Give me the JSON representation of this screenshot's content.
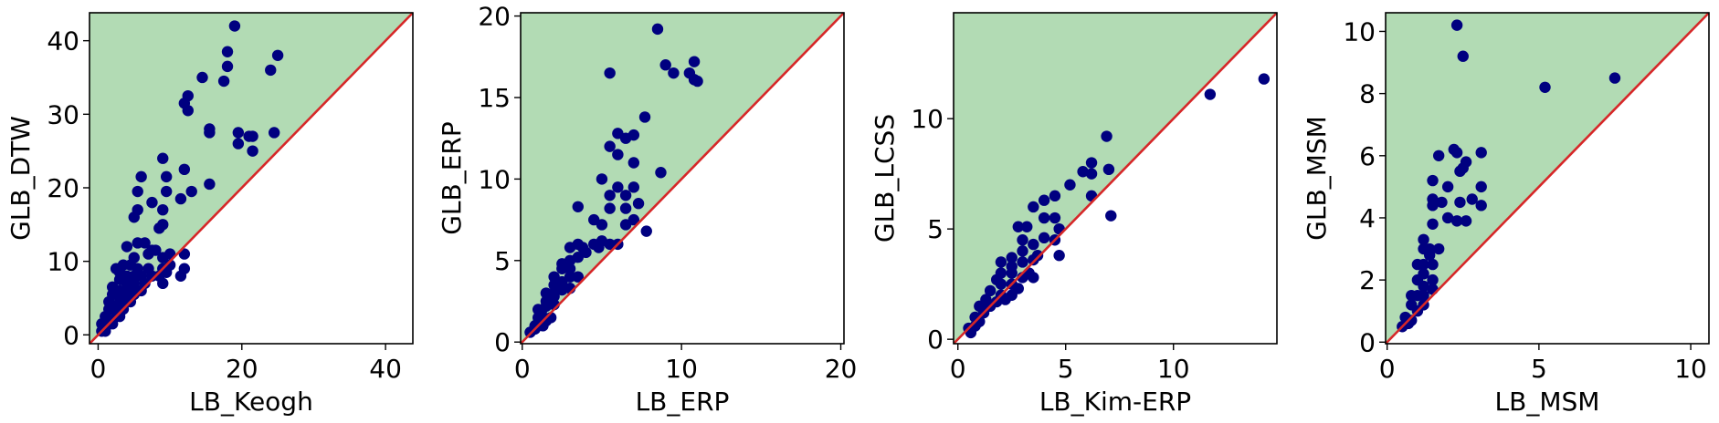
{
  "colors": {
    "above_region": "#b2dbb4",
    "diagonal": "#d62728",
    "points": "#000080",
    "frame": "#000000"
  },
  "chart_data": [
    {
      "type": "scatter",
      "xlabel": "LB_Keogh",
      "ylabel": "GLB_DTW",
      "xlim": [
        -1.2,
        43.8
      ],
      "ylim": [
        -1.2,
        43.8
      ],
      "xticks": [
        0,
        20,
        40
      ],
      "yticks": [
        0,
        10,
        20,
        30,
        40
      ],
      "diagonal": true,
      "shade_above_diagonal": true,
      "points": [
        [
          19,
          42
        ],
        [
          18,
          38.5
        ],
        [
          18,
          36.5
        ],
        [
          14.5,
          35
        ],
        [
          17.5,
          34.5
        ],
        [
          12.5,
          32.5
        ],
        [
          12,
          31.5
        ],
        [
          12.5,
          30.5
        ],
        [
          25,
          38
        ],
        [
          24,
          36
        ],
        [
          24.5,
          27.5
        ],
        [
          15.5,
          28
        ],
        [
          15.5,
          27.5
        ],
        [
          19.5,
          27.5
        ],
        [
          19.5,
          26
        ],
        [
          21,
          27
        ],
        [
          21.5,
          27
        ],
        [
          21.5,
          25
        ],
        [
          9,
          24
        ],
        [
          12,
          22.5
        ],
        [
          6,
          21.5
        ],
        [
          9.5,
          21.5
        ],
        [
          15.5,
          20.5
        ],
        [
          13,
          19.5
        ],
        [
          5.5,
          19.5
        ],
        [
          9.5,
          19.5
        ],
        [
          7.5,
          18
        ],
        [
          11.5,
          18.5
        ],
        [
          5.5,
          17
        ],
        [
          9,
          17
        ],
        [
          5,
          16
        ],
        [
          9,
          15
        ],
        [
          8.5,
          14.5
        ],
        [
          5.5,
          12.5
        ],
        [
          6.5,
          12.5
        ],
        [
          4,
          12
        ],
        [
          7.5,
          11.5
        ],
        [
          10,
          11
        ],
        [
          12,
          11
        ],
        [
          5,
          10.5
        ],
        [
          7,
          11
        ],
        [
          8,
          11.5
        ],
        [
          9,
          10.5
        ],
        [
          2.5,
          9
        ],
        [
          3.5,
          9.5
        ],
        [
          4.5,
          9.5
        ],
        [
          5.5,
          9
        ],
        [
          7,
          9
        ],
        [
          9,
          9
        ],
        [
          10,
          9.5
        ],
        [
          12,
          9
        ],
        [
          3,
          8.5
        ],
        [
          4,
          8
        ],
        [
          5,
          8
        ],
        [
          6,
          8
        ],
        [
          7.5,
          8
        ],
        [
          8.5,
          8
        ],
        [
          9.5,
          8.5
        ],
        [
          11.5,
          8
        ],
        [
          3,
          7.5
        ],
        [
          4,
          7
        ],
        [
          5,
          7
        ],
        [
          6.5,
          7
        ],
        [
          9,
          7
        ],
        [
          2,
          6.5
        ],
        [
          3,
          6
        ],
        [
          4,
          6
        ],
        [
          5,
          6.5
        ],
        [
          6,
          6
        ],
        [
          2,
          5.5
        ],
        [
          3,
          5
        ],
        [
          4,
          5
        ],
        [
          5,
          5.5
        ],
        [
          1.5,
          4.5
        ],
        [
          2.5,
          4
        ],
        [
          3.5,
          4.5
        ],
        [
          4.5,
          4.5
        ],
        [
          1.5,
          3.5
        ],
        [
          2.5,
          3
        ],
        [
          3.5,
          3.5
        ],
        [
          1,
          2.5
        ],
        [
          2,
          2
        ],
        [
          3,
          2.5
        ],
        [
          0.5,
          1.5
        ],
        [
          1,
          1
        ],
        [
          1.5,
          1.5
        ],
        [
          2,
          1.5
        ],
        [
          0.5,
          0.5
        ],
        [
          1,
          0.5
        ]
      ]
    },
    {
      "type": "scatter",
      "xlabel": "LB_ERP",
      "ylabel": "GLB_ERP",
      "xlim": [
        -0.1,
        20.2
      ],
      "ylim": [
        -0.1,
        20.2
      ],
      "xticks": [
        0,
        10,
        20
      ],
      "yticks": [
        0,
        5,
        10,
        15,
        20
      ],
      "diagonal": true,
      "shade_above_diagonal": true,
      "points": [
        [
          8.5,
          19.2
        ],
        [
          9,
          17
        ],
        [
          9.5,
          16.5
        ],
        [
          10.5,
          16.5
        ],
        [
          10.8,
          17.2
        ],
        [
          11,
          16
        ],
        [
          10.8,
          16.1
        ],
        [
          5.5,
          16.5
        ],
        [
          7.7,
          13.8
        ],
        [
          6,
          12.8
        ],
        [
          6.5,
          12.5
        ],
        [
          7,
          12.7
        ],
        [
          5.5,
          12
        ],
        [
          7,
          11
        ],
        [
          6,
          11.5
        ],
        [
          8.7,
          10.4
        ],
        [
          5,
          10
        ],
        [
          6,
          9.5
        ],
        [
          7,
          9.5
        ],
        [
          5.5,
          9
        ],
        [
          6.5,
          9
        ],
        [
          7.3,
          8.5
        ],
        [
          5.5,
          8.2
        ],
        [
          6.5,
          8.2
        ],
        [
          3.5,
          8.3
        ],
        [
          6.5,
          7.2
        ],
        [
          7,
          7.5
        ],
        [
          4.5,
          7.5
        ],
        [
          5,
          7.2
        ],
        [
          7.8,
          6.8
        ],
        [
          3.5,
          6
        ],
        [
          4.5,
          6
        ],
        [
          5,
          6.2
        ],
        [
          5.5,
          6
        ],
        [
          6,
          6
        ],
        [
          4,
          5.5
        ],
        [
          3,
          5.8
        ],
        [
          3.8,
          5.8
        ],
        [
          4.8,
          5.8
        ],
        [
          3,
          5
        ],
        [
          3.5,
          5.2
        ],
        [
          2.5,
          4.8
        ],
        [
          2.5,
          4.5
        ],
        [
          3,
          4.5
        ],
        [
          2,
          4
        ],
        [
          3,
          4
        ],
        [
          3.5,
          4
        ],
        [
          2.5,
          3.7
        ],
        [
          2,
          3.5
        ],
        [
          3,
          3.3
        ],
        [
          1.5,
          3
        ],
        [
          2,
          3
        ],
        [
          2.5,
          3.2
        ],
        [
          1.5,
          2.5
        ],
        [
          2,
          2.8
        ],
        [
          1,
          2
        ],
        [
          1.5,
          2.2
        ],
        [
          2,
          2.3
        ],
        [
          1.2,
          1.8
        ],
        [
          1.8,
          1.5
        ],
        [
          1,
          1.5
        ],
        [
          1.5,
          1.3
        ],
        [
          0.8,
          1
        ],
        [
          1.3,
          1
        ],
        [
          0.8,
          0.8
        ],
        [
          1,
          1.2
        ],
        [
          0.5,
          0.6
        ]
      ]
    },
    {
      "type": "scatter",
      "xlabel": "LB_Kim-ERP",
      "ylabel": "GLB_LCSS",
      "xlim": [
        -0.2,
        14.8
      ],
      "ylim": [
        -0.2,
        14.8
      ],
      "xticks": [
        0,
        5,
        10
      ],
      "yticks": [
        0,
        5,
        10
      ],
      "diagonal": true,
      "shade_above_diagonal": true,
      "points": [
        [
          14.2,
          11.8
        ],
        [
          11.7,
          11.1
        ],
        [
          6.9,
          9.2
        ],
        [
          6.2,
          8
        ],
        [
          5.8,
          7.6
        ],
        [
          6.2,
          7.5
        ],
        [
          7,
          7.7
        ],
        [
          7.1,
          5.6
        ],
        [
          5.2,
          7
        ],
        [
          6.2,
          6.5
        ],
        [
          4.5,
          6.5
        ],
        [
          4,
          6.3
        ],
        [
          3.5,
          6
        ],
        [
          2.8,
          5.1
        ],
        [
          3.2,
          5.1
        ],
        [
          4,
          5.5
        ],
        [
          4.5,
          5.5
        ],
        [
          4.7,
          5
        ],
        [
          4.5,
          4.5
        ],
        [
          3,
          4.5
        ],
        [
          4,
          4.6
        ],
        [
          3.5,
          4.3
        ],
        [
          3,
          4
        ],
        [
          2.5,
          3.7
        ],
        [
          3.7,
          3.8
        ],
        [
          4.7,
          3.8
        ],
        [
          2,
          3.5
        ],
        [
          3,
          3.5
        ],
        [
          3.5,
          3.6
        ],
        [
          2.5,
          3.3
        ],
        [
          3.3,
          3
        ],
        [
          2,
          3
        ],
        [
          2.5,
          3
        ],
        [
          3,
          2.8
        ],
        [
          2,
          2.5
        ],
        [
          1.8,
          2.7
        ],
        [
          2.5,
          2.5
        ],
        [
          3.5,
          2.8
        ],
        [
          2.8,
          2.3
        ],
        [
          1.5,
          2.2
        ],
        [
          2,
          2
        ],
        [
          2.5,
          2
        ],
        [
          1.3,
          1.8
        ],
        [
          1.8,
          1.7
        ],
        [
          2.2,
          1.8
        ],
        [
          1,
          1.5
        ],
        [
          1.5,
          1.5
        ],
        [
          1.2,
          1.2
        ],
        [
          0.8,
          1
        ],
        [
          1,
          0.8
        ],
        [
          0.5,
          0.5
        ],
        [
          0.8,
          0.6
        ],
        [
          0.6,
          0.3
        ]
      ]
    },
    {
      "type": "scatter",
      "xlabel": "LB_MSM",
      "ylabel": "GLB_MSM",
      "xlim": [
        -0.05,
        10.6
      ],
      "ylim": [
        -0.05,
        10.6
      ],
      "xticks": [
        0,
        5,
        10
      ],
      "yticks": [
        0,
        2,
        4,
        6,
        8,
        10
      ],
      "diagonal": true,
      "shade_above_diagonal": true,
      "points": [
        [
          2.3,
          10.2
        ],
        [
          2.5,
          9.2
        ],
        [
          5.2,
          8.2
        ],
        [
          7.5,
          8.5
        ],
        [
          2.2,
          6.2
        ],
        [
          2.3,
          6.1
        ],
        [
          1.7,
          6
        ],
        [
          2.6,
          5.8
        ],
        [
          3.1,
          6.1
        ],
        [
          2.5,
          5.6
        ],
        [
          1.5,
          5.2
        ],
        [
          2,
          5
        ],
        [
          3.1,
          5
        ],
        [
          2.4,
          5.5
        ],
        [
          1.5,
          4.6
        ],
        [
          1.8,
          4.5
        ],
        [
          1.5,
          4.4
        ],
        [
          2.4,
          4.5
        ],
        [
          3.1,
          4.4
        ],
        [
          2.8,
          4.6
        ],
        [
          2,
          4
        ],
        [
          2.3,
          3.9
        ],
        [
          2.6,
          3.9
        ],
        [
          1.5,
          3.8
        ],
        [
          1.2,
          3.3
        ],
        [
          1.4,
          3
        ],
        [
          1.2,
          3
        ],
        [
          1.7,
          3
        ],
        [
          1.4,
          2.8
        ],
        [
          1,
          2.5
        ],
        [
          1.2,
          2.5
        ],
        [
          1.5,
          2.5
        ],
        [
          1,
          2
        ],
        [
          1.2,
          2.2
        ],
        [
          1.5,
          2
        ],
        [
          1.2,
          1.8
        ],
        [
          1.5,
          1.7
        ],
        [
          0.8,
          1.5
        ],
        [
          1,
          1.5
        ],
        [
          1.2,
          1.5
        ],
        [
          0.8,
          1.2
        ],
        [
          1,
          1
        ],
        [
          1.2,
          1.2
        ],
        [
          0.6,
          0.8
        ],
        [
          0.8,
          0.7
        ],
        [
          0.5,
          0.5
        ],
        [
          0.7,
          0.6
        ]
      ]
    }
  ]
}
